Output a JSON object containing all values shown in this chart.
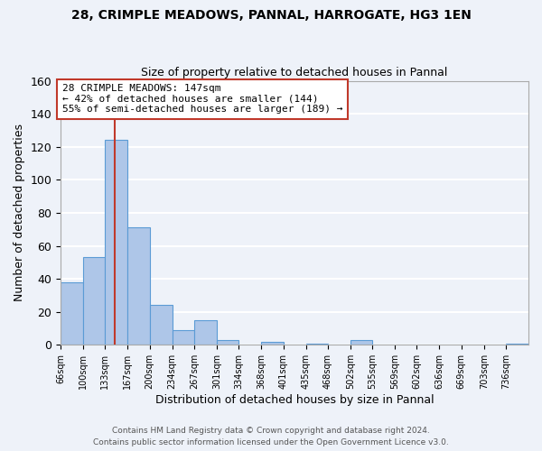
{
  "title": "28, CRIMPLE MEADOWS, PANNAL, HARROGATE, HG3 1EN",
  "subtitle": "Size of property relative to detached houses in Pannal",
  "xlabel": "Distribution of detached houses by size in Pannal",
  "ylabel": "Number of detached properties",
  "footer_line1": "Contains HM Land Registry data © Crown copyright and database right 2024.",
  "footer_line2": "Contains public sector information licensed under the Open Government Licence v3.0.",
  "bin_labels": [
    "66sqm",
    "100sqm",
    "133sqm",
    "167sqm",
    "200sqm",
    "234sqm",
    "267sqm",
    "301sqm",
    "334sqm",
    "368sqm",
    "401sqm",
    "435sqm",
    "468sqm",
    "502sqm",
    "535sqm",
    "569sqm",
    "602sqm",
    "636sqm",
    "669sqm",
    "703sqm",
    "736sqm"
  ],
  "bar_heights": [
    38,
    53,
    124,
    71,
    24,
    9,
    15,
    3,
    0,
    2,
    0,
    1,
    0,
    3,
    0,
    0,
    0,
    0,
    0,
    0,
    1
  ],
  "bar_color": "#aec6e8",
  "bar_edge_color": "#5b9bd5",
  "vline_x": 147,
  "vline_color": "#c0392b",
  "annotation_line1": "28 CRIMPLE MEADOWS: 147sqm",
  "annotation_line2": "← 42% of detached houses are smaller (144)",
  "annotation_line3": "55% of semi-detached houses are larger (189) →",
  "annotation_box_color": "#c0392b",
  "ylim": [
    0,
    160
  ],
  "yticks": [
    0,
    20,
    40,
    60,
    80,
    100,
    120,
    140,
    160
  ],
  "background_color": "#eef2f9",
  "grid_color": "#ffffff",
  "bin_edges_sqm": [
    66,
    100,
    133,
    167,
    200,
    234,
    267,
    301,
    334,
    368,
    401,
    435,
    468,
    502,
    535,
    569,
    602,
    636,
    669,
    703,
    736,
    770
  ]
}
